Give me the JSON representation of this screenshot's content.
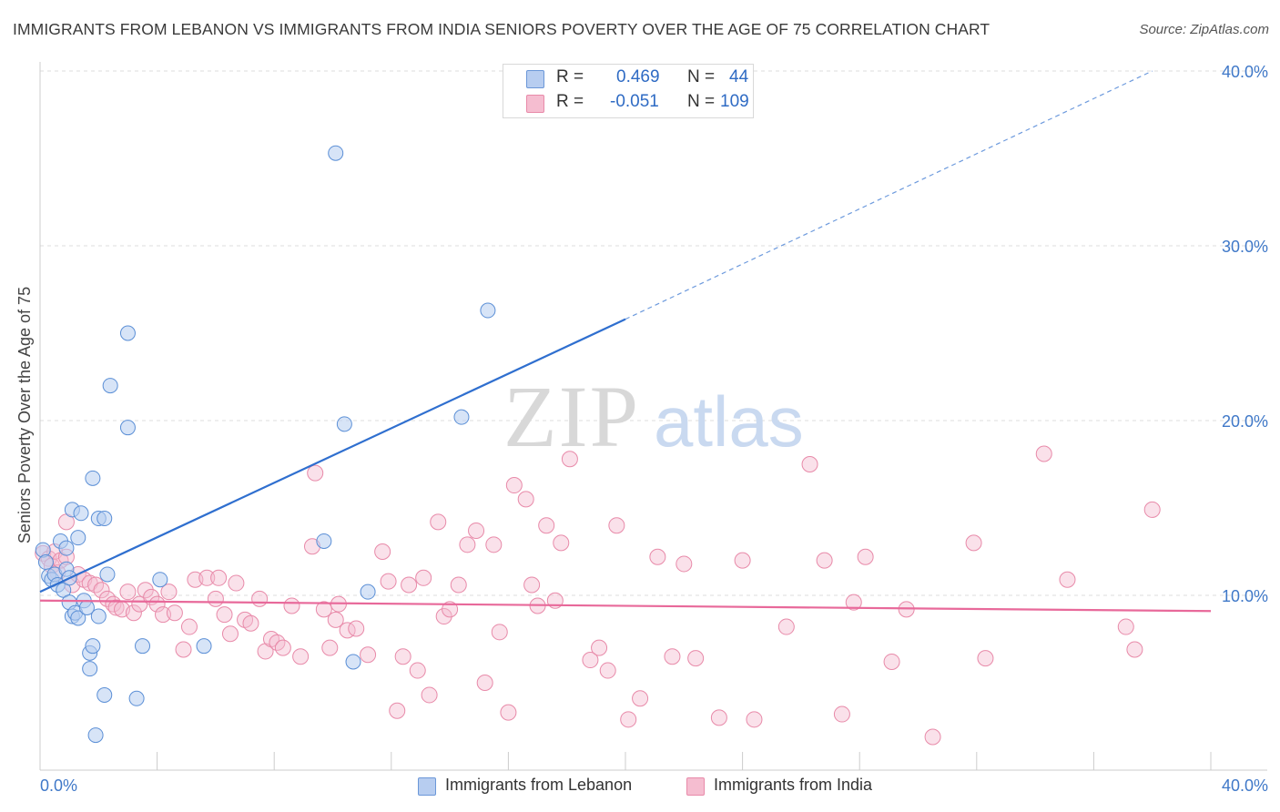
{
  "title": "IMMIGRANTS FROM LEBANON VS IMMIGRANTS FROM INDIA SENIORS POVERTY OVER THE AGE OF 75 CORRELATION CHART",
  "source": "Source: ZipAtlas.com",
  "watermark": {
    "zip": "ZIP",
    "atlas": "atlas"
  },
  "legend": {
    "r_label": "R =",
    "n_label": "N =",
    "rows": [
      {
        "r": "0.469",
        "n": "44"
      },
      {
        "r": "-0.051",
        "n": "109"
      }
    ]
  },
  "bottom_legend": [
    "Immigrants from Lebanon",
    "Immigrants from India"
  ],
  "colors": {
    "lebanon_fill": "#b7cdf0",
    "lebanon_stroke": "#5b8fd6",
    "lebanon_line": "#2f6fcf",
    "india_fill": "#f5bdd0",
    "india_stroke": "#e88aa9",
    "india_line": "#e8699a",
    "tick_label": "#3f78c8",
    "grid": "#dddddd"
  },
  "chart_data": {
    "type": "scatter",
    "title": "IMMIGRANTS FROM LEBANON VS IMMIGRANTS FROM INDIA SENIORS POVERTY OVER THE AGE OF 75 CORRELATION CHART",
    "xlabel": "",
    "ylabel": "Seniors Poverty Over the Age of 75",
    "xlim": [
      0,
      40
    ],
    "ylim": [
      0,
      42
    ],
    "x_tick_labels": [
      "0.0%",
      "40.0%"
    ],
    "y_ticks": [
      10,
      20,
      30,
      40
    ],
    "y_tick_labels": [
      "10.0%",
      "20.0%",
      "30.0%",
      "40.0%"
    ],
    "grid": "horizontal dashed",
    "legend_position": "top-center",
    "series": [
      {
        "name": "Immigrants from Lebanon",
        "R": 0.469,
        "N": 44,
        "trend": {
          "x": [
            0,
            20
          ],
          "y": [
            10.2,
            25.8
          ],
          "extended_to": [
            38,
            40
          ]
        },
        "points": [
          [
            0.1,
            12.6
          ],
          [
            0.2,
            11.9
          ],
          [
            0.3,
            11.1
          ],
          [
            0.4,
            10.9
          ],
          [
            0.5,
            11.2
          ],
          [
            0.6,
            10.6
          ],
          [
            0.7,
            13.1
          ],
          [
            0.8,
            10.3
          ],
          [
            0.9,
            11.5
          ],
          [
            0.9,
            12.7
          ],
          [
            1.0,
            11.0
          ],
          [
            1.0,
            9.6
          ],
          [
            1.1,
            8.8
          ],
          [
            1.1,
            14.9
          ],
          [
            1.2,
            9.0
          ],
          [
            1.3,
            8.7
          ],
          [
            1.3,
            13.3
          ],
          [
            1.4,
            14.7
          ],
          [
            1.5,
            9.7
          ],
          [
            1.6,
            9.3
          ],
          [
            1.7,
            6.7
          ],
          [
            1.7,
            5.8
          ],
          [
            1.8,
            7.1
          ],
          [
            1.8,
            16.7
          ],
          [
            1.9,
            2.0
          ],
          [
            2.0,
            14.4
          ],
          [
            2.0,
            8.8
          ],
          [
            2.2,
            4.3
          ],
          [
            2.2,
            14.4
          ],
          [
            2.3,
            11.2
          ],
          [
            2.4,
            22.0
          ],
          [
            3.0,
            25.0
          ],
          [
            3.0,
            19.6
          ],
          [
            3.3,
            4.1
          ],
          [
            3.5,
            7.1
          ],
          [
            4.1,
            10.9
          ],
          [
            5.6,
            7.1
          ],
          [
            9.7,
            13.1
          ],
          [
            10.1,
            35.3
          ],
          [
            10.4,
            19.8
          ],
          [
            10.7,
            6.2
          ],
          [
            14.4,
            20.2
          ],
          [
            15.3,
            26.3
          ],
          [
            11.2,
            10.2
          ]
        ]
      },
      {
        "name": "Immigrants from India",
        "R": -0.051,
        "N": 109,
        "trend": {
          "x": [
            0,
            40
          ],
          "y": [
            9.7,
            9.1
          ]
        },
        "points": [
          [
            0.1,
            12.4
          ],
          [
            0.3,
            12.1
          ],
          [
            0.4,
            11.7
          ],
          [
            0.5,
            12.5
          ],
          [
            0.6,
            11.3
          ],
          [
            0.7,
            12.0
          ],
          [
            0.9,
            12.2
          ],
          [
            0.9,
            14.2
          ],
          [
            1.1,
            10.6
          ],
          [
            1.3,
            11.2
          ],
          [
            1.5,
            10.9
          ],
          [
            1.7,
            10.7
          ],
          [
            1.9,
            10.6
          ],
          [
            2.1,
            10.3
          ],
          [
            2.3,
            9.8
          ],
          [
            2.5,
            9.5
          ],
          [
            2.6,
            9.3
          ],
          [
            2.8,
            9.2
          ],
          [
            3.0,
            10.2
          ],
          [
            3.2,
            9.0
          ],
          [
            3.4,
            9.5
          ],
          [
            3.6,
            10.3
          ],
          [
            3.8,
            9.9
          ],
          [
            4.0,
            9.5
          ],
          [
            4.2,
            8.9
          ],
          [
            4.4,
            10.2
          ],
          [
            4.6,
            9.0
          ],
          [
            4.9,
            6.9
          ],
          [
            5.1,
            8.2
          ],
          [
            5.3,
            10.9
          ],
          [
            5.7,
            11.0
          ],
          [
            6.0,
            9.8
          ],
          [
            6.1,
            11.0
          ],
          [
            6.3,
            8.9
          ],
          [
            6.5,
            7.8
          ],
          [
            6.7,
            10.7
          ],
          [
            7.0,
            8.6
          ],
          [
            7.2,
            8.4
          ],
          [
            7.5,
            9.8
          ],
          [
            7.7,
            6.8
          ],
          [
            7.9,
            7.5
          ],
          [
            8.1,
            7.3
          ],
          [
            8.3,
            7.0
          ],
          [
            8.6,
            9.4
          ],
          [
            8.9,
            6.5
          ],
          [
            9.3,
            12.8
          ],
          [
            9.4,
            17.0
          ],
          [
            9.7,
            9.2
          ],
          [
            9.9,
            7.0
          ],
          [
            10.1,
            8.6
          ],
          [
            10.2,
            9.5
          ],
          [
            10.5,
            8.0
          ],
          [
            10.8,
            8.1
          ],
          [
            11.2,
            6.6
          ],
          [
            11.7,
            12.5
          ],
          [
            11.9,
            10.8
          ],
          [
            12.2,
            3.4
          ],
          [
            12.4,
            6.5
          ],
          [
            12.6,
            10.6
          ],
          [
            12.9,
            5.7
          ],
          [
            13.1,
            11.0
          ],
          [
            13.3,
            4.3
          ],
          [
            13.6,
            14.2
          ],
          [
            13.8,
            8.8
          ],
          [
            14.0,
            9.2
          ],
          [
            14.3,
            10.6
          ],
          [
            14.6,
            12.9
          ],
          [
            14.9,
            13.7
          ],
          [
            15.2,
            5.0
          ],
          [
            15.5,
            12.9
          ],
          [
            15.7,
            7.9
          ],
          [
            16.0,
            3.3
          ],
          [
            16.2,
            16.3
          ],
          [
            16.6,
            15.5
          ],
          [
            16.8,
            10.6
          ],
          [
            17.0,
            9.4
          ],
          [
            17.3,
            14.0
          ],
          [
            17.6,
            9.7
          ],
          [
            17.8,
            13.0
          ],
          [
            18.1,
            17.8
          ],
          [
            18.8,
            6.3
          ],
          [
            19.1,
            7.0
          ],
          [
            19.4,
            5.7
          ],
          [
            19.7,
            14.0
          ],
          [
            20.1,
            2.9
          ],
          [
            20.5,
            4.1
          ],
          [
            21.1,
            12.2
          ],
          [
            21.6,
            6.5
          ],
          [
            22.0,
            11.8
          ],
          [
            22.4,
            6.4
          ],
          [
            23.2,
            3.0
          ],
          [
            24.0,
            12.0
          ],
          [
            24.4,
            2.9
          ],
          [
            25.5,
            8.2
          ],
          [
            26.3,
            17.5
          ],
          [
            26.8,
            12.0
          ],
          [
            27.4,
            3.2
          ],
          [
            27.8,
            9.6
          ],
          [
            28.2,
            12.2
          ],
          [
            29.1,
            6.2
          ],
          [
            29.6,
            9.2
          ],
          [
            30.5,
            1.9
          ],
          [
            31.9,
            13.0
          ],
          [
            32.3,
            6.4
          ],
          [
            34.3,
            18.1
          ],
          [
            35.1,
            10.9
          ],
          [
            37.1,
            8.2
          ],
          [
            37.4,
            6.9
          ],
          [
            38.0,
            14.9
          ]
        ]
      }
    ]
  }
}
